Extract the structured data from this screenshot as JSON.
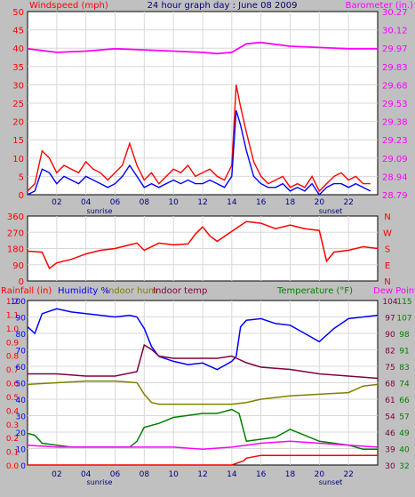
{
  "title": "24 hour graph day : June 08 2009",
  "colors": {
    "background": "#c0c0c0",
    "plot": "#ffffff",
    "wind": "#ff0000",
    "gust_avg": "#0000ff",
    "barometer": "#ff00ff",
    "direction": "#ff0000",
    "humidity": "#0000ff",
    "indoor_hum": "#808000",
    "indoor_temp": "#800040",
    "temperature": "#008000",
    "dew_point": "#ff00ff",
    "rainfall": "#ff0000"
  },
  "x_ticks": [
    "02",
    "04",
    "06",
    "08",
    "10",
    "12",
    "14",
    "16",
    "18",
    "20",
    "22"
  ],
  "sun_labels": {
    "sunrise": "sunrise",
    "sunset": "sunset"
  },
  "panel1": {
    "left_label": "Windspeed (mph)",
    "right_label": "Barometer (in.)",
    "left_ticks": [
      "0",
      "5",
      "10",
      "15",
      "20",
      "25",
      "30",
      "35",
      "40",
      "45",
      "50"
    ],
    "right_ticks": [
      "28.79",
      "28.94",
      "29.09",
      "29.23",
      "29.38",
      "29.53",
      "29.68",
      "29.83",
      "29.97",
      "30.12",
      "30.27"
    ]
  },
  "panel2": {
    "left_ticks": [
      "0",
      "90",
      "180",
      "270",
      "360"
    ],
    "right_ticks": [
      "N",
      "E",
      "S",
      "W",
      "N"
    ]
  },
  "panel3": {
    "label_rain": "Rainfall (in)",
    "label_hum": "Humidity %",
    "label_inhum": "Indoor hum",
    "label_intemp": "Indoor temp",
    "label_temp": "Temperature (°F)",
    "label_dew": "Dew Point",
    "rain_ticks": [
      "0.0",
      "0.1",
      "0.2",
      "0.3",
      "0.4",
      "0.5",
      "0.6",
      "0.7",
      "0.8",
      "0.9",
      "1.0",
      "1.1",
      "1.2"
    ],
    "hum_ticks": [
      "0",
      "10",
      "20",
      "30",
      "40",
      "50",
      "60",
      "70",
      "80",
      "90",
      "100"
    ],
    "temp_ticks_inner": [
      "30",
      "39",
      "46",
      "54",
      "61",
      "68",
      "75",
      "82",
      "90",
      "97",
      "104"
    ],
    "temp_ticks_outer": [
      "32",
      "40",
      "49",
      "57",
      "66",
      "74",
      "83",
      "91",
      "98",
      "107",
      "115"
    ]
  },
  "chart_data": [
    {
      "type": "line",
      "title": "24 hour graph day : June 08 2009",
      "x_unit": "hour",
      "xlim": [
        0,
        24
      ],
      "series": [
        {
          "name": "Windspeed (mph)",
          "axis": "left",
          "ylim": [
            0,
            50
          ],
          "x": [
            0,
            0.5,
            1,
            1.5,
            2,
            2.5,
            3,
            3.5,
            4,
            4.5,
            5,
            5.5,
            6,
            6.5,
            7,
            7.5,
            8,
            8.5,
            9,
            9.5,
            10,
            10.5,
            11,
            11.5,
            12,
            12.5,
            13,
            13.5,
            14,
            14.3,
            14.6,
            15,
            15.5,
            16,
            16.5,
            17,
            17.5,
            18,
            18.5,
            19,
            19.5,
            20,
            20.5,
            21,
            21.5,
            22,
            22.5,
            23,
            23.5
          ],
          "y": [
            1,
            3,
            12,
            10,
            6,
            8,
            7,
            6,
            9,
            7,
            6,
            4,
            6,
            8,
            14,
            8,
            4,
            6,
            3,
            5,
            7,
            6,
            8,
            5,
            6,
            7,
            5,
            4,
            8,
            30,
            24,
            17,
            9,
            5,
            3,
            4,
            5,
            2,
            3,
            2,
            5,
            1,
            3,
            5,
            6,
            4,
            5,
            3,
            3
          ]
        },
        {
          "name": "Gust average",
          "axis": "left",
          "ylim": [
            0,
            50
          ],
          "x": [
            0,
            0.5,
            1,
            1.5,
            2,
            2.5,
            3,
            3.5,
            4,
            4.5,
            5,
            5.5,
            6,
            6.5,
            7,
            7.5,
            8,
            8.5,
            9,
            9.5,
            10,
            10.5,
            11,
            11.5,
            12,
            12.5,
            13,
            13.5,
            14,
            14.3,
            14.6,
            15,
            15.5,
            16,
            16.5,
            17,
            17.5,
            18,
            18.5,
            19,
            19.5,
            20,
            20.5,
            21,
            21.5,
            22,
            22.5,
            23,
            23.5
          ],
          "y": [
            0,
            1,
            7,
            6,
            3,
            5,
            4,
            3,
            5,
            4,
            3,
            2,
            3,
            5,
            8,
            5,
            2,
            3,
            2,
            3,
            4,
            3,
            4,
            3,
            3,
            4,
            3,
            2,
            5,
            23,
            19,
            12,
            5,
            3,
            2,
            2,
            3,
            1,
            2,
            1,
            3,
            0,
            2,
            3,
            3,
            2,
            3,
            2,
            1
          ]
        },
        {
          "name": "Barometer (in.)",
          "axis": "right",
          "ylim": [
            28.79,
            30.27
          ],
          "x": [
            0,
            2,
            4,
            6,
            8,
            10,
            12,
            13,
            14,
            15,
            16,
            18,
            20,
            22,
            24
          ],
          "y": [
            29.97,
            29.94,
            29.95,
            29.97,
            29.96,
            29.95,
            29.94,
            29.93,
            29.94,
            30.01,
            30.02,
            29.99,
            29.98,
            29.97,
            29.97
          ]
        }
      ]
    },
    {
      "type": "line",
      "title": "",
      "x_unit": "hour",
      "xlim": [
        0,
        24
      ],
      "series": [
        {
          "name": "",
          "ylim": [
            0,
            360
          ],
          "x": [
            0,
            1,
            1.5,
            2,
            3,
            4,
            5,
            6,
            7,
            7.5,
            8,
            9,
            10,
            11,
            11.5,
            12,
            12.5,
            13,
            14,
            15,
            16,
            17,
            18,
            19,
            20,
            20.5,
            21,
            22,
            23,
            24
          ],
          "y": [
            165,
            160,
            70,
            100,
            120,
            150,
            170,
            180,
            200,
            210,
            170,
            210,
            200,
            205,
            260,
            300,
            250,
            220,
            275,
            330,
            320,
            290,
            310,
            290,
            280,
            110,
            160,
            170,
            190,
            180
          ]
        }
      ]
    },
    {
      "type": "line",
      "title": "",
      "x_unit": "hour",
      "xlim": [
        0,
        24
      ],
      "series": [
        {
          "name": "Humidity %",
          "axis": "humidity",
          "ylim": [
            0,
            100
          ],
          "x": [
            0,
            0.5,
            1,
            2,
            3,
            4,
            5,
            6,
            7,
            7.5,
            8,
            8.5,
            9,
            10,
            11,
            12,
            13,
            14,
            14.3,
            14.6,
            15,
            16,
            17,
            18,
            19,
            20,
            21,
            22,
            23,
            24
          ],
          "y": [
            84,
            80,
            92,
            95,
            93,
            92,
            91,
            90,
            91,
            90,
            83,
            72,
            66,
            63,
            61,
            62,
            58,
            63,
            66,
            84,
            88,
            89,
            86,
            85,
            80,
            75,
            83,
            89,
            90,
            91
          ]
        },
        {
          "name": "Indoor temp",
          "axis": "temp_inner",
          "ylim": [
            30,
            104
          ],
          "x": [
            0,
            2,
            4,
            6,
            7.5,
            8,
            8.5,
            9,
            10,
            11,
            12,
            13,
            14,
            15,
            16,
            18,
            20,
            22,
            24
          ],
          "y": [
            71,
            71,
            70,
            70,
            72,
            84,
            82,
            79,
            78,
            78,
            78,
            78,
            79,
            76,
            74,
            73,
            71,
            70,
            69
          ]
        },
        {
          "name": "Indoor hum",
          "axis": "humidity",
          "ylim": [
            0,
            100
          ],
          "x": [
            0,
            2,
            4,
            6,
            7.5,
            8,
            8.5,
            9,
            10,
            12,
            13,
            14,
            15,
            16,
            18,
            20,
            22,
            23,
            24
          ],
          "y": [
            49,
            50,
            51,
            51,
            50,
            43,
            38,
            37,
            37,
            37,
            37,
            37,
            38,
            40,
            42,
            43,
            44,
            48,
            49
          ]
        },
        {
          "name": "Temperature (°F)",
          "axis": "temp_outer",
          "ylim": [
            32,
            115
          ],
          "x": [
            0,
            0.5,
            1,
            2,
            3,
            4,
            5,
            6,
            7,
            7.5,
            8,
            9,
            10,
            11,
            12,
            13,
            14,
            14.5,
            15,
            16,
            17,
            18,
            19,
            20,
            21,
            22,
            23,
            24
          ],
          "y": [
            48,
            47,
            43,
            42,
            41,
            41,
            41,
            41,
            41,
            44,
            51,
            53,
            56,
            57,
            58,
            58,
            60,
            58,
            44,
            45,
            46,
            50,
            47,
            44,
            43,
            42,
            40,
            40
          ]
        },
        {
          "name": "Dew Point",
          "axis": "temp_outer",
          "ylim": [
            32,
            115
          ],
          "x": [
            0,
            2,
            4,
            6,
            8,
            10,
            12,
            14,
            15,
            16,
            18,
            20,
            22,
            24
          ],
          "y": [
            42,
            41,
            41,
            41,
            41,
            41,
            40,
            41,
            42,
            43,
            44,
            43,
            42,
            41
          ]
        },
        {
          "name": "Rainfall (in)",
          "axis": "rain",
          "ylim": [
            0,
            1.2
          ],
          "x": [
            0,
            14,
            14.8,
            15,
            16,
            18,
            20,
            22,
            24
          ],
          "y": [
            0,
            0,
            0.03,
            0.05,
            0.07,
            0.07,
            0.07,
            0.07,
            0.07
          ]
        }
      ]
    }
  ]
}
